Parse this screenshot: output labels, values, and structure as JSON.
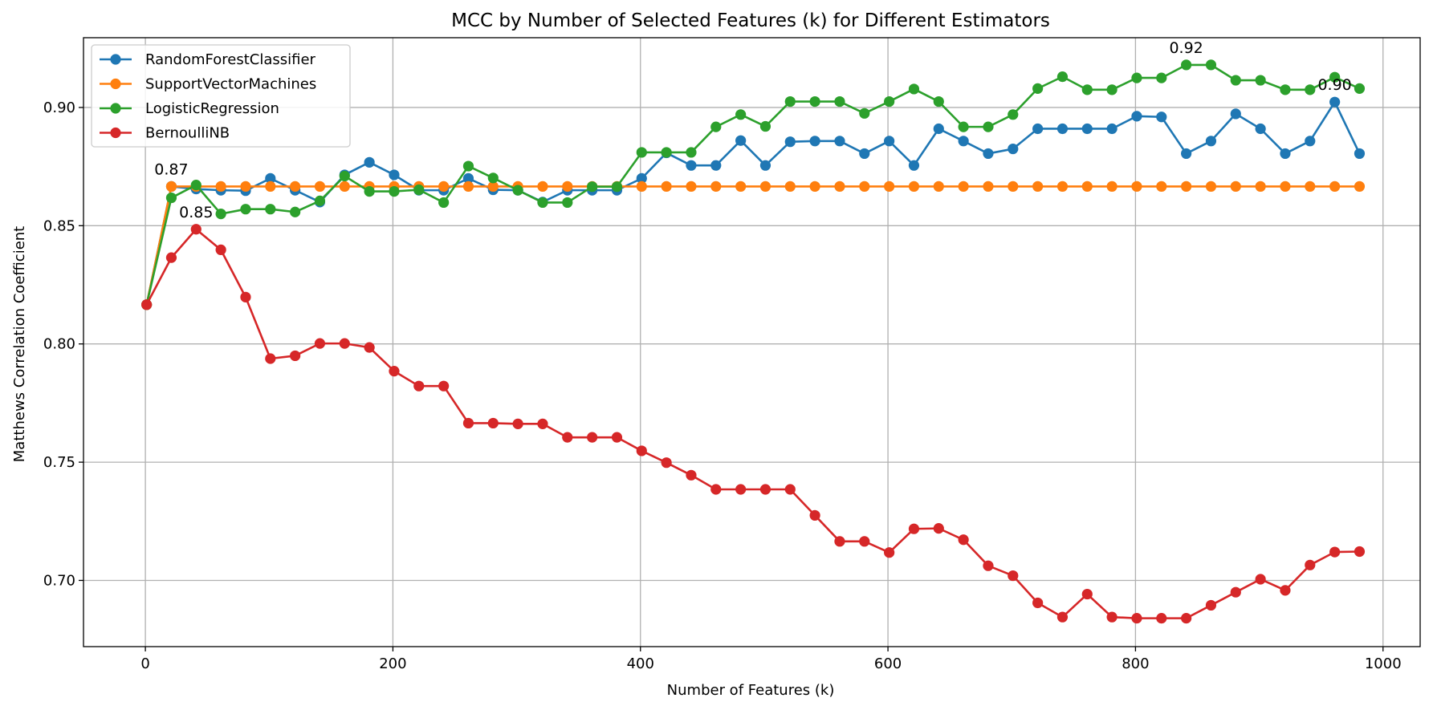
{
  "chart_data": {
    "type": "line",
    "title": "MCC by Number of Selected Features (k) for Different Estimators",
    "xlabel": "Number of Features (k)",
    "ylabel": "Matthews Correlation Coefficient",
    "xlim": [
      -50,
      1030
    ],
    "ylim": [
      0.672,
      0.9295
    ],
    "xticks": [
      0,
      200,
      400,
      600,
      800,
      1000
    ],
    "xtick_labels": [
      "0",
      "200",
      "400",
      "600",
      "800",
      "1000"
    ],
    "yticks": [
      0.7,
      0.75,
      0.8,
      0.85,
      0.9
    ],
    "ytick_labels": [
      "0.70",
      "0.75",
      "0.80",
      "0.85",
      "0.90"
    ],
    "grid": true,
    "legend_position": "top-left",
    "x": [
      1,
      21,
      41,
      61,
      81,
      101,
      121,
      141,
      161,
      181,
      201,
      221,
      241,
      261,
      281,
      301,
      321,
      341,
      361,
      381,
      401,
      421,
      441,
      461,
      481,
      501,
      521,
      541,
      561,
      581,
      601,
      621,
      641,
      661,
      681,
      701,
      721,
      741,
      761,
      781,
      801,
      821,
      841,
      861,
      881,
      901,
      921,
      941,
      961,
      981
    ],
    "series": [
      {
        "name": "RandomForestClassifier",
        "color": "#1f77b4",
        "values": [
          0.8166,
          0.8666,
          0.8655,
          0.865,
          0.8648,
          0.87,
          0.865,
          0.86,
          0.8715,
          0.8768,
          0.8715,
          0.865,
          0.865,
          0.87,
          0.8652,
          0.865,
          0.86,
          0.865,
          0.865,
          0.865,
          0.87,
          0.8808,
          0.8755,
          0.8755,
          0.886,
          0.8755,
          0.8855,
          0.8858,
          0.8858,
          0.8805,
          0.8858,
          0.8755,
          0.891,
          0.8858,
          0.8805,
          0.8825,
          0.891,
          0.891,
          0.891,
          0.891,
          0.8963,
          0.896,
          0.8805,
          0.8858,
          0.8973,
          0.891,
          0.8805,
          0.8858,
          0.9023,
          0.8805
        ]
      },
      {
        "name": "SupportVectorMachines",
        "color": "#ff7f0e",
        "values": [
          0.8166,
          0.8666,
          0.8666,
          0.8666,
          0.8666,
          0.8666,
          0.8666,
          0.8666,
          0.8666,
          0.8666,
          0.8666,
          0.8666,
          0.8666,
          0.8666,
          0.8666,
          0.8666,
          0.8666,
          0.8666,
          0.8666,
          0.8666,
          0.8666,
          0.8666,
          0.8666,
          0.8666,
          0.8666,
          0.8666,
          0.8666,
          0.8666,
          0.8666,
          0.8666,
          0.8666,
          0.8666,
          0.8666,
          0.8666,
          0.8666,
          0.8666,
          0.8666,
          0.8666,
          0.8666,
          0.8666,
          0.8666,
          0.8666,
          0.8666,
          0.8666,
          0.8666,
          0.8666,
          0.8666,
          0.8666,
          0.8666,
          0.8666
        ]
      },
      {
        "name": "LogisticRegression",
        "color": "#2ca02c",
        "values": [
          0.8166,
          0.8618,
          0.8672,
          0.855,
          0.857,
          0.857,
          0.8558,
          0.8605,
          0.871,
          0.8645,
          0.8645,
          0.8652,
          0.8598,
          0.8752,
          0.8702,
          0.865,
          0.8598,
          0.8598,
          0.8665,
          0.8665,
          0.881,
          0.881,
          0.881,
          0.8918,
          0.897,
          0.892,
          0.9025,
          0.9025,
          0.9025,
          0.8975,
          0.9025,
          0.9078,
          0.9025,
          0.8918,
          0.8918,
          0.897,
          0.908,
          0.913,
          0.9075,
          0.9075,
          0.9125,
          0.9125,
          0.918,
          0.918,
          0.9115,
          0.9115,
          0.9075,
          0.9075,
          0.9128,
          0.908
        ]
      },
      {
        "name": "BernoulliNB",
        "color": "#d62728",
        "values": [
          0.8166,
          0.8365,
          0.8485,
          0.8398,
          0.8198,
          0.7938,
          0.795,
          0.8002,
          0.8002,
          0.7985,
          0.7885,
          0.7822,
          0.7822,
          0.7665,
          0.7665,
          0.7662,
          0.7662,
          0.7605,
          0.7605,
          0.7605,
          0.7548,
          0.7498,
          0.7445,
          0.7385,
          0.7385,
          0.7385,
          0.7385,
          0.7275,
          0.7165,
          0.7165,
          0.7118,
          0.7218,
          0.722,
          0.7172,
          0.7062,
          0.702,
          0.6905,
          0.6845,
          0.6942,
          0.6845,
          0.684,
          0.684,
          0.684,
          0.6895,
          0.695,
          0.7005,
          0.6958,
          0.7065,
          0.712,
          0.7122
        ]
      }
    ],
    "annotations": [
      {
        "text": "0.87",
        "x": 21,
        "y": 0.8666
      },
      {
        "text": "0.85",
        "x": 41,
        "y": 0.8485
      },
      {
        "text": "0.92",
        "x": 841,
        "y": 0.918
      },
      {
        "text": "0.90",
        "x": 961,
        "y": 0.9023
      }
    ]
  }
}
